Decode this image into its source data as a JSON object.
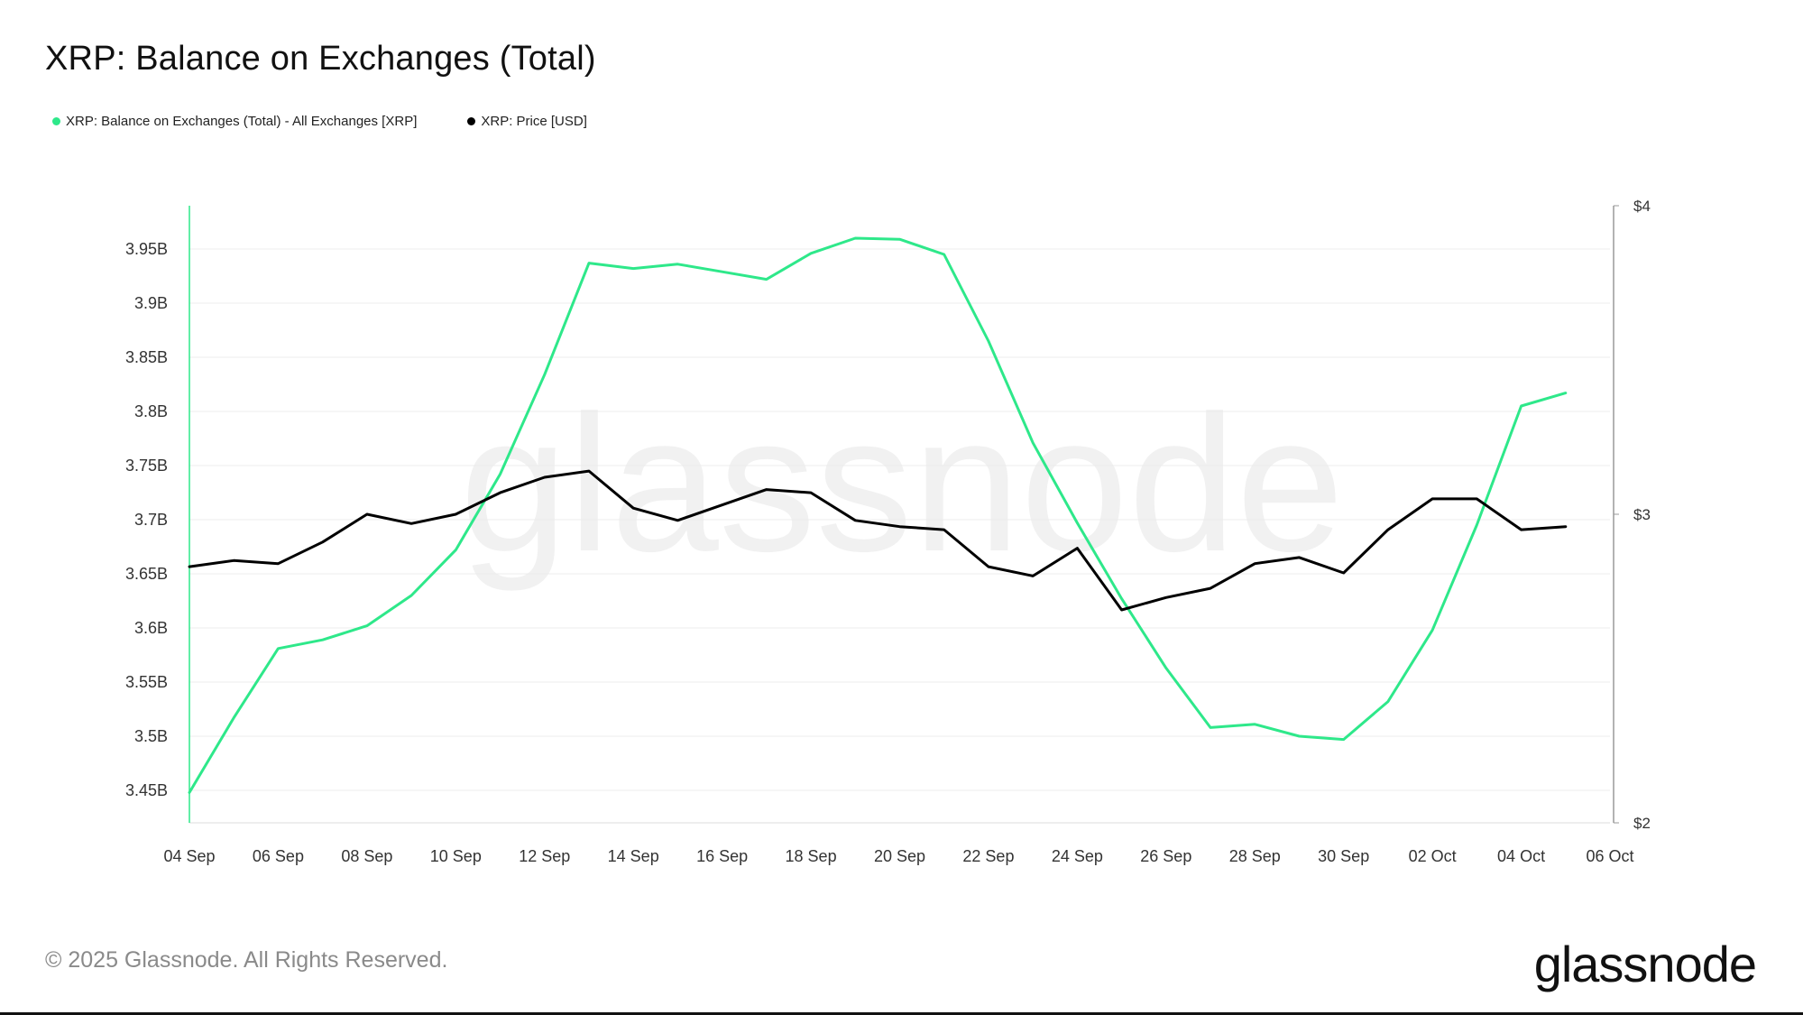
{
  "title": "XRP: Balance on Exchanges (Total)",
  "legend": {
    "series_a": "XRP: Balance on Exchanges (Total) - All Exchanges [XRP]",
    "series_b": "XRP: Price [USD]"
  },
  "colors": {
    "balance": "#2ee88a",
    "price": "#000000",
    "grid": "#ececec",
    "axis": "#9a9a9a"
  },
  "watermark": "glassnode",
  "footer": {
    "copyright": "© 2025 Glassnode. All Rights Reserved.",
    "logo": "glassnode"
  },
  "chart_data": {
    "type": "line",
    "title": "XRP: Balance on Exchanges (Total)",
    "x": [
      "2025-09-04",
      "2025-09-05",
      "2025-09-06",
      "2025-09-07",
      "2025-09-08",
      "2025-09-09",
      "2025-09-10",
      "2025-09-11",
      "2025-09-12",
      "2025-09-13",
      "2025-09-14",
      "2025-09-15",
      "2025-09-16",
      "2025-09-17",
      "2025-09-18",
      "2025-09-19",
      "2025-09-20",
      "2025-09-21",
      "2025-09-22",
      "2025-09-23",
      "2025-09-24",
      "2025-09-25",
      "2025-09-26",
      "2025-09-27",
      "2025-09-28",
      "2025-09-29",
      "2025-09-30",
      "2025-10-01",
      "2025-10-02",
      "2025-10-03",
      "2025-10-04",
      "2025-10-05"
    ],
    "x_ticks": [
      "04 Sep",
      "06 Sep",
      "08 Sep",
      "10 Sep",
      "12 Sep",
      "14 Sep",
      "16 Sep",
      "18 Sep",
      "20 Sep",
      "22 Sep",
      "24 Sep",
      "26 Sep",
      "28 Sep",
      "30 Sep",
      "02 Oct",
      "04 Oct",
      "06 Oct"
    ],
    "x_range": [
      "2025-09-04",
      "2025-10-06"
    ],
    "y_left": {
      "ticks": [
        "3.45B",
        "3.5B",
        "3.55B",
        "3.6B",
        "3.65B",
        "3.7B",
        "3.75B",
        "3.8B",
        "3.85B",
        "3.9B",
        "3.95B"
      ],
      "tick_values": [
        3.45,
        3.5,
        3.55,
        3.6,
        3.65,
        3.7,
        3.75,
        3.8,
        3.85,
        3.9,
        3.95
      ],
      "range": [
        3.42,
        3.99
      ],
      "unit": "B XRP"
    },
    "y_right": {
      "ticks": [
        "$2",
        "$3",
        "$4"
      ],
      "tick_values": [
        2,
        3,
        4
      ],
      "range": [
        2,
        4
      ],
      "unit": "USD"
    },
    "grid": true,
    "legend_position": "top-left",
    "series": [
      {
        "name": "XRP: Balance on Exchanges (Total) - All Exchanges [XRP]",
        "axis": "left",
        "color": "#2ee88a",
        "values": [
          3.448,
          3.517,
          3.581,
          3.589,
          3.602,
          3.63,
          3.672,
          3.742,
          3.834,
          3.937,
          3.932,
          3.936,
          3.929,
          3.922,
          3.946,
          3.96,
          3.959,
          3.945,
          3.865,
          3.771,
          3.697,
          3.627,
          3.563,
          3.508,
          3.511,
          3.5,
          3.497,
          3.532,
          3.598,
          3.695,
          3.805,
          3.817
        ]
      },
      {
        "name": "XRP: Price [USD]",
        "axis": "right",
        "color": "#000000",
        "values": [
          2.83,
          2.85,
          2.84,
          2.91,
          3.0,
          2.97,
          3.0,
          3.07,
          3.12,
          3.14,
          3.02,
          2.98,
          3.03,
          3.08,
          3.07,
          2.98,
          2.96,
          2.95,
          2.83,
          2.8,
          2.89,
          2.69,
          2.73,
          2.76,
          2.84,
          2.86,
          2.81,
          2.95,
          3.05,
          3.05,
          2.95,
          2.96
        ]
      }
    ]
  }
}
